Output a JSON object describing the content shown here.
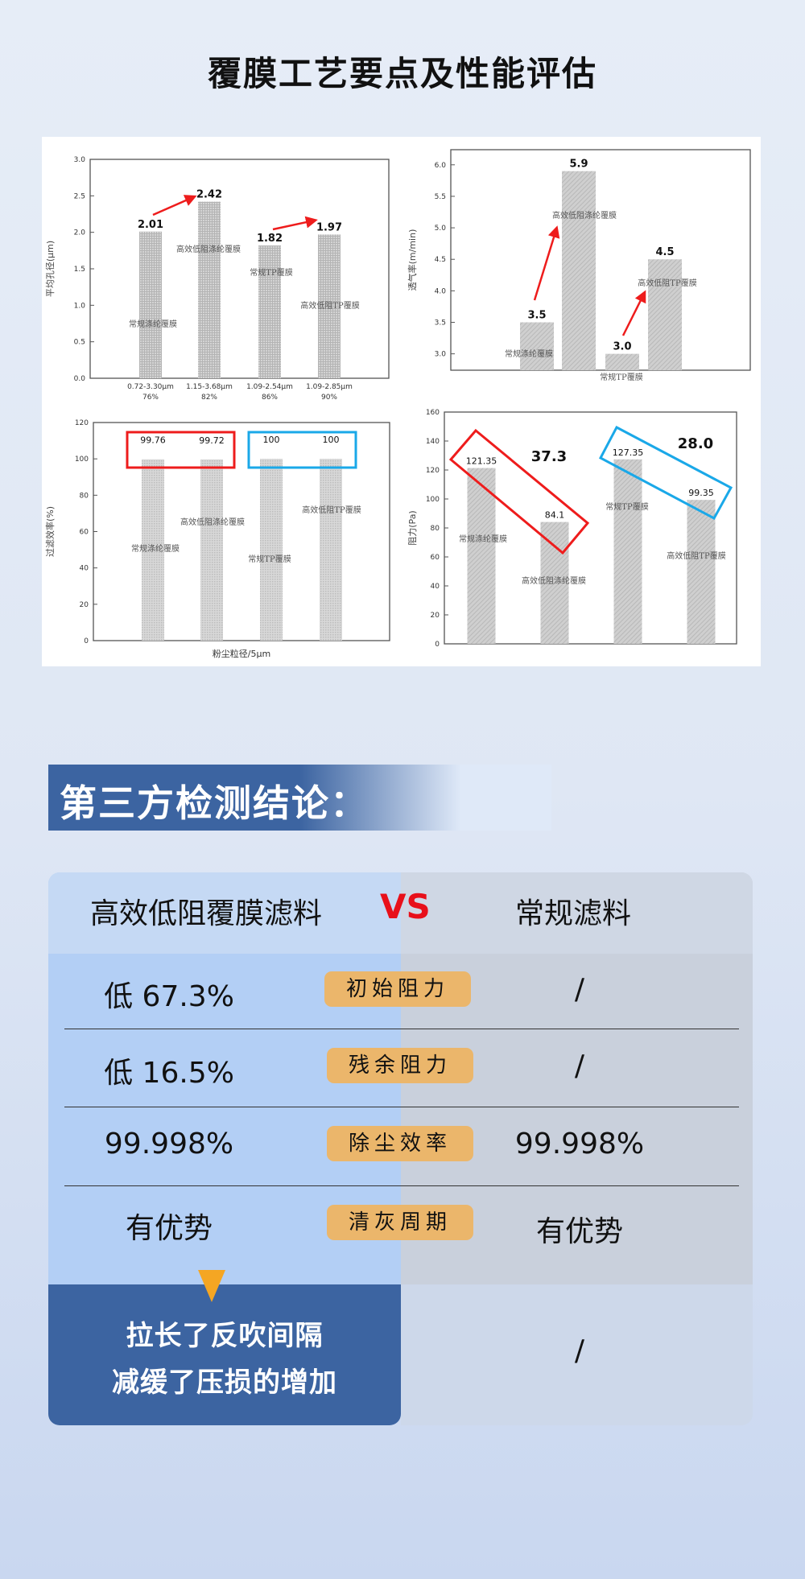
{
  "title": "覆膜工艺要点及性能评估",
  "chart_data": [
    {
      "type": "bar",
      "ylabel": "平均孔径(μm)",
      "ylim": [
        0,
        3.0
      ],
      "yticks": [
        "0.0",
        "0.5",
        "1.0",
        "1.5",
        "2.0",
        "2.5",
        "3.0"
      ],
      "categories": [
        "0.72-3.30μm|76%",
        "1.15-3.68μm|82%",
        "1.09-2.54μm|86%",
        "1.09-2.85μm|90%"
      ],
      "bar_labels": [
        "常规涤纶覆膜",
        "高效低阻涤纶覆膜",
        "常规TP覆膜",
        "高效低阻TP覆膜"
      ],
      "values": [
        2.01,
        2.42,
        1.82,
        1.97
      ],
      "value_labels": [
        "2.01",
        "2.42",
        "1.82",
        "1.97"
      ],
      "annotation_color": "#ee1c1c"
    },
    {
      "type": "bar",
      "ylabel": "透气率(m/min)",
      "ylim": [
        2.74,
        6.24
      ],
      "yticks": [
        "3.0",
        "3.5",
        "4.0",
        "4.5",
        "5.0",
        "5.5",
        "6.0"
      ],
      "bar_labels": [
        "常规涤纶覆膜",
        "高效低阻涤纶覆膜",
        "常规TP覆膜",
        "高效低阻TP覆膜"
      ],
      "values": [
        3.5,
        5.9,
        3.0,
        4.5
      ],
      "value_labels": [
        "3.5",
        "5.9",
        "3.0",
        "4.5"
      ],
      "annotation_color": "#ee1c1c"
    },
    {
      "type": "bar",
      "ylabel": "过滤效率(%)",
      "xlabel": "粉尘粒径/5μm",
      "ylim": [
        0,
        120
      ],
      "yticks": [
        "0",
        "20",
        "40",
        "60",
        "80",
        "100",
        "120"
      ],
      "bar_labels": [
        "常规涤纶覆膜",
        "高效低阻涤纶覆膜",
        "常规TP覆膜",
        "高效低阻TP覆膜"
      ],
      "values": [
        99.76,
        99.72,
        100,
        100
      ],
      "value_labels": [
        "99.76",
        "99.72",
        "100",
        "100"
      ],
      "highlight_colors": [
        "#ee1c1c",
        "#1aa8e8"
      ]
    },
    {
      "type": "bar",
      "ylabel": "阻力(Pa)",
      "ylim": [
        0,
        160
      ],
      "yticks": [
        "0",
        "20",
        "40",
        "60",
        "80",
        "100",
        "120",
        "140",
        "160"
      ],
      "bar_labels": [
        "常规涤纶覆膜",
        "高效低阻涤纶覆膜",
        "常规TP覆膜",
        "高效低阻TP覆膜"
      ],
      "values": [
        121.35,
        84.1,
        127.35,
        99.35
      ],
      "value_labels": [
        "121.35",
        "84.1",
        "127.35",
        "99.35"
      ],
      "annotations": [
        "37.3",
        "28.0"
      ],
      "highlight_colors": [
        "#ee1c1c",
        "#1aa8e8"
      ]
    }
  ],
  "section": {
    "title": "第三方检测结论："
  },
  "compare": {
    "left_header": "高效低阻覆膜滤料",
    "vs": "VS",
    "right_header": "常规滤料",
    "rows": [
      {
        "left": "低 67.3%",
        "label": "初始阻力",
        "right": "/"
      },
      {
        "left": "低 16.5%",
        "label": "残余阻力",
        "right": "/"
      },
      {
        "left": "99.998%",
        "label": "除尘效率",
        "right": "99.998%"
      },
      {
        "left": "有优势",
        "label": "清灰周期",
        "right": "有优势"
      }
    ],
    "bottom_left": [
      "拉长了反吹间隔",
      "减缓了压损的增加"
    ],
    "bottom_right": "/",
    "colors": {
      "left": "#b3cff5",
      "right": "#c9d0dc",
      "badge": "#ebb66b",
      "dark": "#3c64a1",
      "vs": "#e8101a",
      "pointer": "#f5a623"
    }
  }
}
